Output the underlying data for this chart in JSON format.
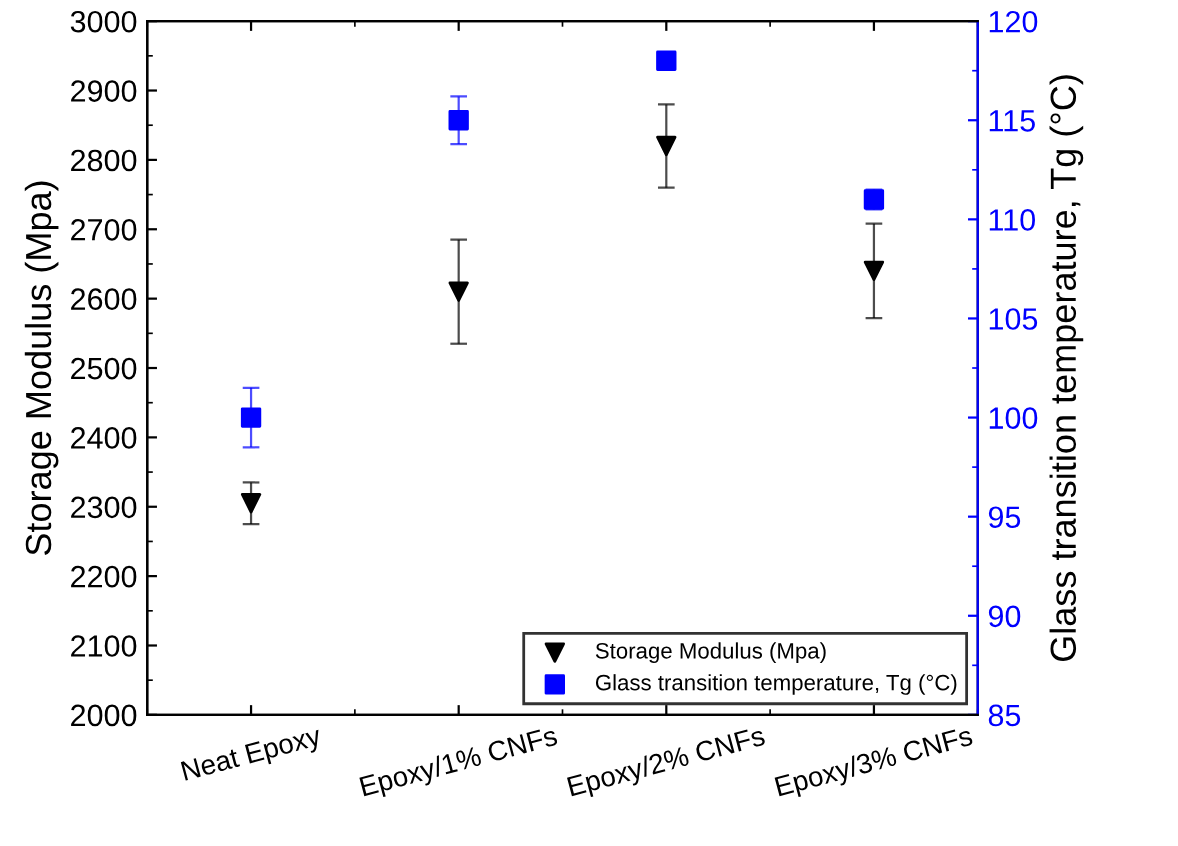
{
  "chart_data": {
    "type": "scatter",
    "ylabel": "Storage Modulus (Mpa)",
    "y2label": "Glass transition temperature, Tg (°C)",
    "categories": [
      "Neat Epoxy",
      "Epoxy/1% CNFs",
      "Epoxy/2% CNFs",
      "Epoxy/3% CNFs"
    ],
    "series": [
      {
        "name": "Storage Modulus (Mpa)",
        "color": "#000000",
        "marker": "triangle",
        "values": [
          2305,
          2610,
          2820,
          2640
        ],
        "errors": [
          30,
          75,
          60,
          68
        ]
      },
      {
        "name": "Glass transition temperature, Tg (°C)",
        "color": "#0000ff",
        "marker": "square",
        "axis": "y2",
        "values": [
          100,
          115,
          118,
          111
        ],
        "errors": [
          1.5,
          1.2,
          null,
          0.5
        ]
      }
    ],
    "ylim": [
      2000,
      3000
    ],
    "yticks": [
      2000,
      2100,
      2200,
      2300,
      2400,
      2500,
      2600,
      2700,
      2800,
      2900,
      3000
    ],
    "y2lim": [
      85,
      120
    ],
    "y2ticks": [
      85,
      90,
      95,
      100,
      105,
      110,
      115,
      120
    ],
    "grid": false,
    "legend": "bottom right"
  }
}
